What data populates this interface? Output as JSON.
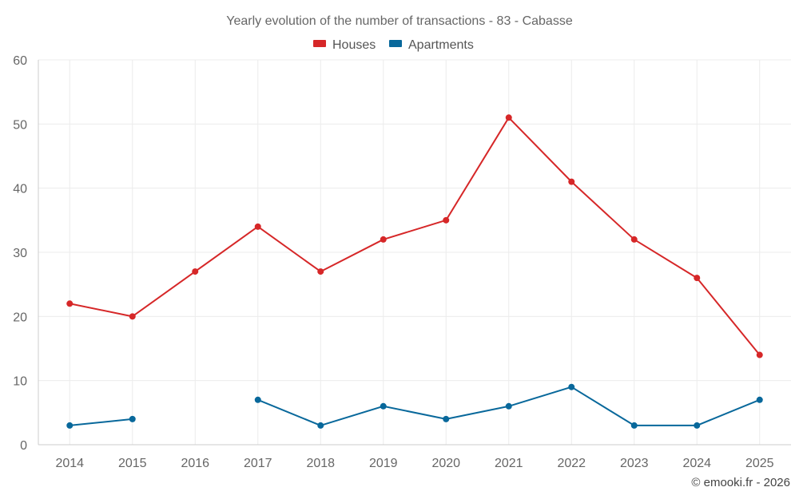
{
  "chart_data": {
    "type": "line",
    "title": "Yearly evolution of the number of transactions - 83 - Cabasse",
    "xlabel": "",
    "ylabel": "",
    "ylim": [
      0,
      60
    ],
    "yticks": [
      0,
      10,
      20,
      30,
      40,
      50,
      60
    ],
    "grid": true,
    "legend_position": "top-center",
    "categories": [
      "2014",
      "2015",
      "2016",
      "2017",
      "2018",
      "2019",
      "2020",
      "2021",
      "2022",
      "2023",
      "2024",
      "2025"
    ],
    "series": [
      {
        "name": "Houses",
        "color": "#d62728",
        "values": [
          22,
          20,
          27,
          34,
          27,
          32,
          35,
          51,
          41,
          32,
          26,
          14
        ]
      },
      {
        "name": "Apartments",
        "color": "#08689b",
        "values": [
          3,
          4,
          null,
          7,
          3,
          6,
          4,
          6,
          9,
          3,
          3,
          7
        ]
      }
    ]
  },
  "credit": "© emooki.fr - 2026"
}
